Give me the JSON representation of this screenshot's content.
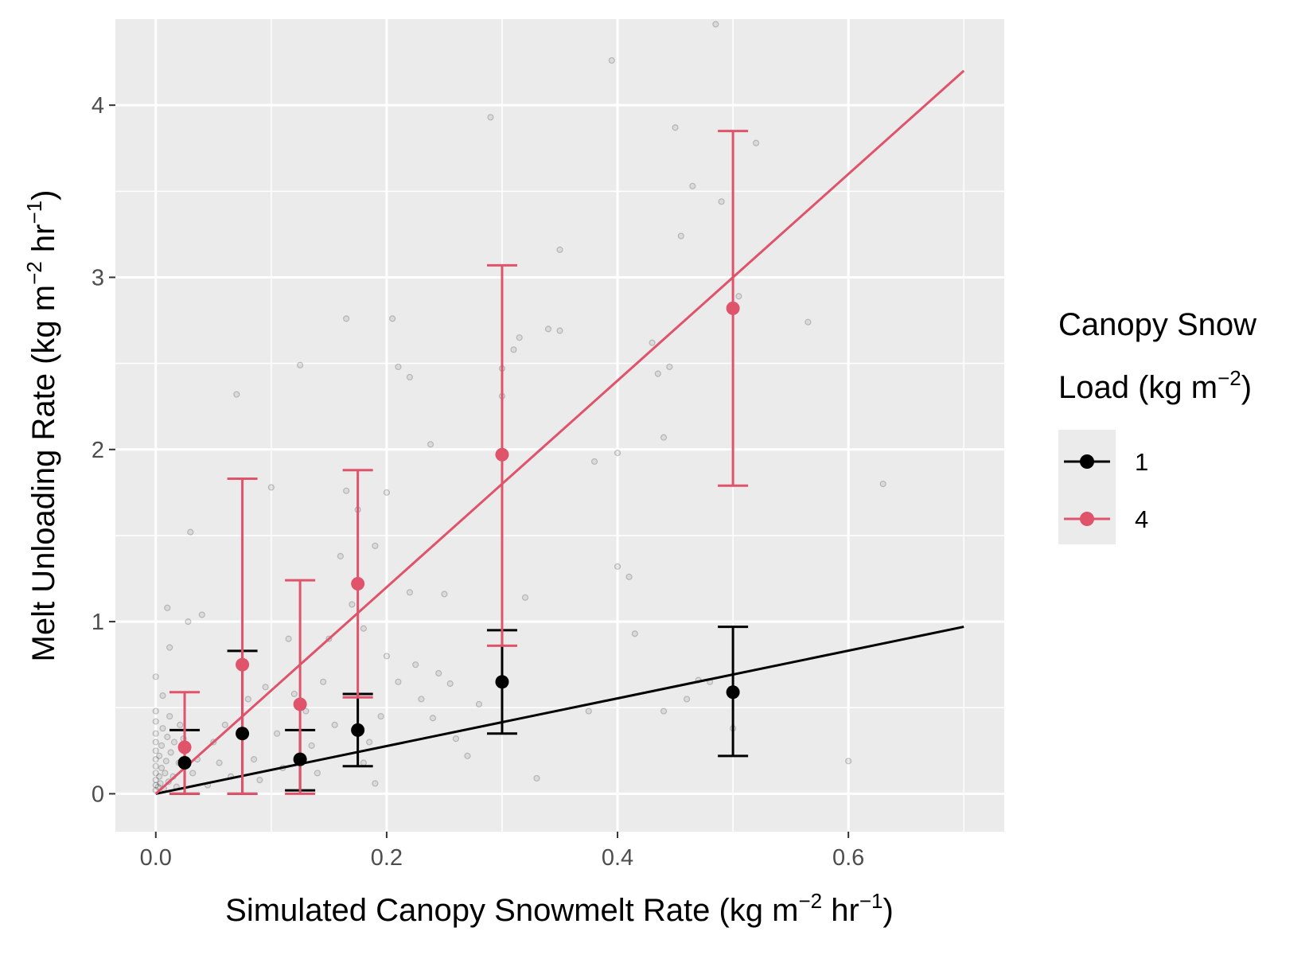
{
  "chart_data": {
    "type": "scatter",
    "xlabel": "Simulated Canopy Snowmelt Rate (kg m",
    "xlabel_sup1": "−2",
    "xlabel_mid": " hr",
    "xlabel_sup2": "−1",
    "xlabel_end": ")",
    "ylabel": "Melt Unloading Rate (kg m",
    "ylabel_sup1": "−2",
    "ylabel_mid": " hr",
    "ylabel_sup2": "−1",
    "ylabel_end": ")",
    "xlim": [
      -0.035,
      0.735
    ],
    "ylim": [
      -0.22,
      4.5
    ],
    "x_ticks": [
      0.0,
      0.2,
      0.4,
      0.6
    ],
    "x_tick_labels": [
      "0.0",
      "0.2",
      "0.4",
      "0.6"
    ],
    "y_ticks": [
      0,
      1,
      2,
      3,
      4
    ],
    "y_tick_labels": [
      "0",
      "1",
      "2",
      "3",
      "4"
    ],
    "grid": true,
    "panel_background": "#ebebeb",
    "legend": {
      "position": "right",
      "title_line1": "Canopy Snow",
      "title_line2": "Load (kg m",
      "title_sup": "−2",
      "title_end": ")",
      "entries": [
        {
          "label": "1",
          "color": "#000000"
        },
        {
          "label": "4",
          "color": "#df536b"
        }
      ]
    },
    "series": [
      {
        "name": "1",
        "color": "#000000",
        "points": [
          {
            "x": 0.025,
            "y": 0.18,
            "ymin": 0.0,
            "ymax": 0.37
          },
          {
            "x": 0.075,
            "y": 0.35,
            "ymin": 0.0,
            "ymax": 0.83
          },
          {
            "x": 0.125,
            "y": 0.2,
            "ymin": 0.02,
            "ymax": 0.37
          },
          {
            "x": 0.175,
            "y": 0.37,
            "ymin": 0.16,
            "ymax": 0.58
          },
          {
            "x": 0.3,
            "y": 0.65,
            "ymin": 0.35,
            "ymax": 0.95
          },
          {
            "x": 0.5,
            "y": 0.59,
            "ymin": 0.22,
            "ymax": 0.97
          }
        ],
        "fit": {
          "x": [
            0.0,
            0.7
          ],
          "y": [
            0.0,
            0.97
          ]
        }
      },
      {
        "name": "4",
        "color": "#df536b",
        "points": [
          {
            "x": 0.025,
            "y": 0.27,
            "ymin": 0.0,
            "ymax": 0.59
          },
          {
            "x": 0.075,
            "y": 0.75,
            "ymin": 0.0,
            "ymax": 1.83
          },
          {
            "x": 0.125,
            "y": 0.52,
            "ymin": 0.0,
            "ymax": 1.24
          },
          {
            "x": 0.175,
            "y": 1.22,
            "ymin": 0.56,
            "ymax": 1.88
          },
          {
            "x": 0.3,
            "y": 1.97,
            "ymin": 0.86,
            "ymax": 3.07
          },
          {
            "x": 0.5,
            "y": 2.82,
            "ymin": 1.79,
            "ymax": 3.85
          }
        ],
        "fit": {
          "x": [
            0.0,
            0.7
          ],
          "y": [
            0.0,
            4.2
          ]
        }
      }
    ],
    "observations": [
      [
        0.0,
        0.02
      ],
      [
        0.0,
        0.05
      ],
      [
        0.0,
        0.08
      ],
      [
        0.0,
        0.12
      ],
      [
        0.0,
        0.16
      ],
      [
        0.0,
        0.2
      ],
      [
        0.0,
        0.25
      ],
      [
        0.0,
        0.3
      ],
      [
        0.0,
        0.35
      ],
      [
        0.0,
        0.42
      ],
      [
        0.0,
        0.48
      ],
      [
        0.002,
        0.04
      ],
      [
        0.003,
        0.1
      ],
      [
        0.003,
        0.22
      ],
      [
        0.004,
        0.06
      ],
      [
        0.005,
        0.15
      ],
      [
        0.005,
        0.28
      ],
      [
        0.006,
        0.38
      ],
      [
        0.007,
        0.03
      ],
      [
        0.008,
        0.12
      ],
      [
        0.009,
        0.19
      ],
      [
        0.01,
        0.33
      ],
      [
        0.011,
        0.07
      ],
      [
        0.012,
        0.45
      ],
      [
        0.013,
        0.24
      ],
      [
        0.015,
        0.1
      ],
      [
        0.016,
        0.3
      ],
      [
        0.018,
        0.04
      ],
      [
        0.02,
        0.18
      ],
      [
        0.021,
        0.4
      ],
      [
        0.0,
        0.68
      ],
      [
        0.006,
        0.57
      ],
      [
        0.012,
        0.85
      ],
      [
        0.01,
        1.08
      ],
      [
        0.03,
        1.52
      ],
      [
        0.028,
        1.0
      ],
      [
        0.04,
        1.04
      ],
      [
        0.024,
        0.32
      ],
      [
        0.032,
        0.12
      ],
      [
        0.036,
        0.2
      ],
      [
        0.045,
        0.05
      ],
      [
        0.05,
        0.3
      ],
      [
        0.055,
        0.18
      ],
      [
        0.06,
        0.4
      ],
      [
        0.065,
        0.1
      ],
      [
        0.07,
        2.32
      ],
      [
        0.08,
        0.55
      ],
      [
        0.085,
        0.2
      ],
      [
        0.09,
        0.08
      ],
      [
        0.095,
        0.62
      ],
      [
        0.1,
        1.78
      ],
      [
        0.105,
        0.35
      ],
      [
        0.11,
        0.15
      ],
      [
        0.115,
        0.9
      ],
      [
        0.12,
        0.58
      ],
      [
        0.125,
        2.49
      ],
      [
        0.13,
        0.48
      ],
      [
        0.135,
        0.28
      ],
      [
        0.14,
        0.12
      ],
      [
        0.145,
        0.65
      ],
      [
        0.15,
        0.9
      ],
      [
        0.155,
        0.4
      ],
      [
        0.16,
        1.38
      ],
      [
        0.165,
        1.76
      ],
      [
        0.165,
        2.76
      ],
      [
        0.17,
        1.1
      ],
      [
        0.175,
        1.65
      ],
      [
        0.18,
        0.96
      ],
      [
        0.185,
        0.3
      ],
      [
        0.19,
        1.44
      ],
      [
        0.195,
        0.45
      ],
      [
        0.2,
        1.75
      ],
      [
        0.205,
        2.76
      ],
      [
        0.21,
        2.48
      ],
      [
        0.22,
        2.42
      ],
      [
        0.22,
        1.17
      ],
      [
        0.23,
        0.55
      ],
      [
        0.238,
        2.03
      ],
      [
        0.245,
        0.7
      ],
      [
        0.25,
        1.16
      ],
      [
        0.255,
        0.64
      ],
      [
        0.2,
        0.8
      ],
      [
        0.19,
        0.06
      ],
      [
        0.18,
        0.18
      ],
      [
        0.21,
        0.65
      ],
      [
        0.225,
        0.75
      ],
      [
        0.24,
        0.44
      ],
      [
        0.26,
        0.32
      ],
      [
        0.27,
        0.22
      ],
      [
        0.28,
        0.52
      ],
      [
        0.29,
        3.93
      ],
      [
        0.3,
        2.31
      ],
      [
        0.3,
        2.47
      ],
      [
        0.31,
        2.58
      ],
      [
        0.315,
        2.65
      ],
      [
        0.32,
        1.14
      ],
      [
        0.33,
        0.09
      ],
      [
        0.34,
        2.7
      ],
      [
        0.35,
        2.69
      ],
      [
        0.35,
        3.16
      ],
      [
        0.375,
        0.48
      ],
      [
        0.38,
        1.93
      ],
      [
        0.395,
        4.26
      ],
      [
        0.4,
        1.98
      ],
      [
        0.4,
        1.32
      ],
      [
        0.41,
        1.26
      ],
      [
        0.415,
        0.93
      ],
      [
        0.43,
        2.62
      ],
      [
        0.435,
        2.44
      ],
      [
        0.44,
        2.07
      ],
      [
        0.445,
        2.48
      ],
      [
        0.45,
        3.87
      ],
      [
        0.455,
        3.24
      ],
      [
        0.465,
        3.53
      ],
      [
        0.47,
        0.66
      ],
      [
        0.48,
        0.65
      ],
      [
        0.485,
        4.47
      ],
      [
        0.49,
        3.44
      ],
      [
        0.505,
        2.89
      ],
      [
        0.52,
        3.78
      ],
      [
        0.565,
        2.74
      ],
      [
        0.6,
        0.19
      ],
      [
        0.63,
        1.8
      ],
      [
        0.44,
        0.48
      ],
      [
        0.5,
        0.38
      ],
      [
        0.46,
        0.55
      ]
    ]
  }
}
